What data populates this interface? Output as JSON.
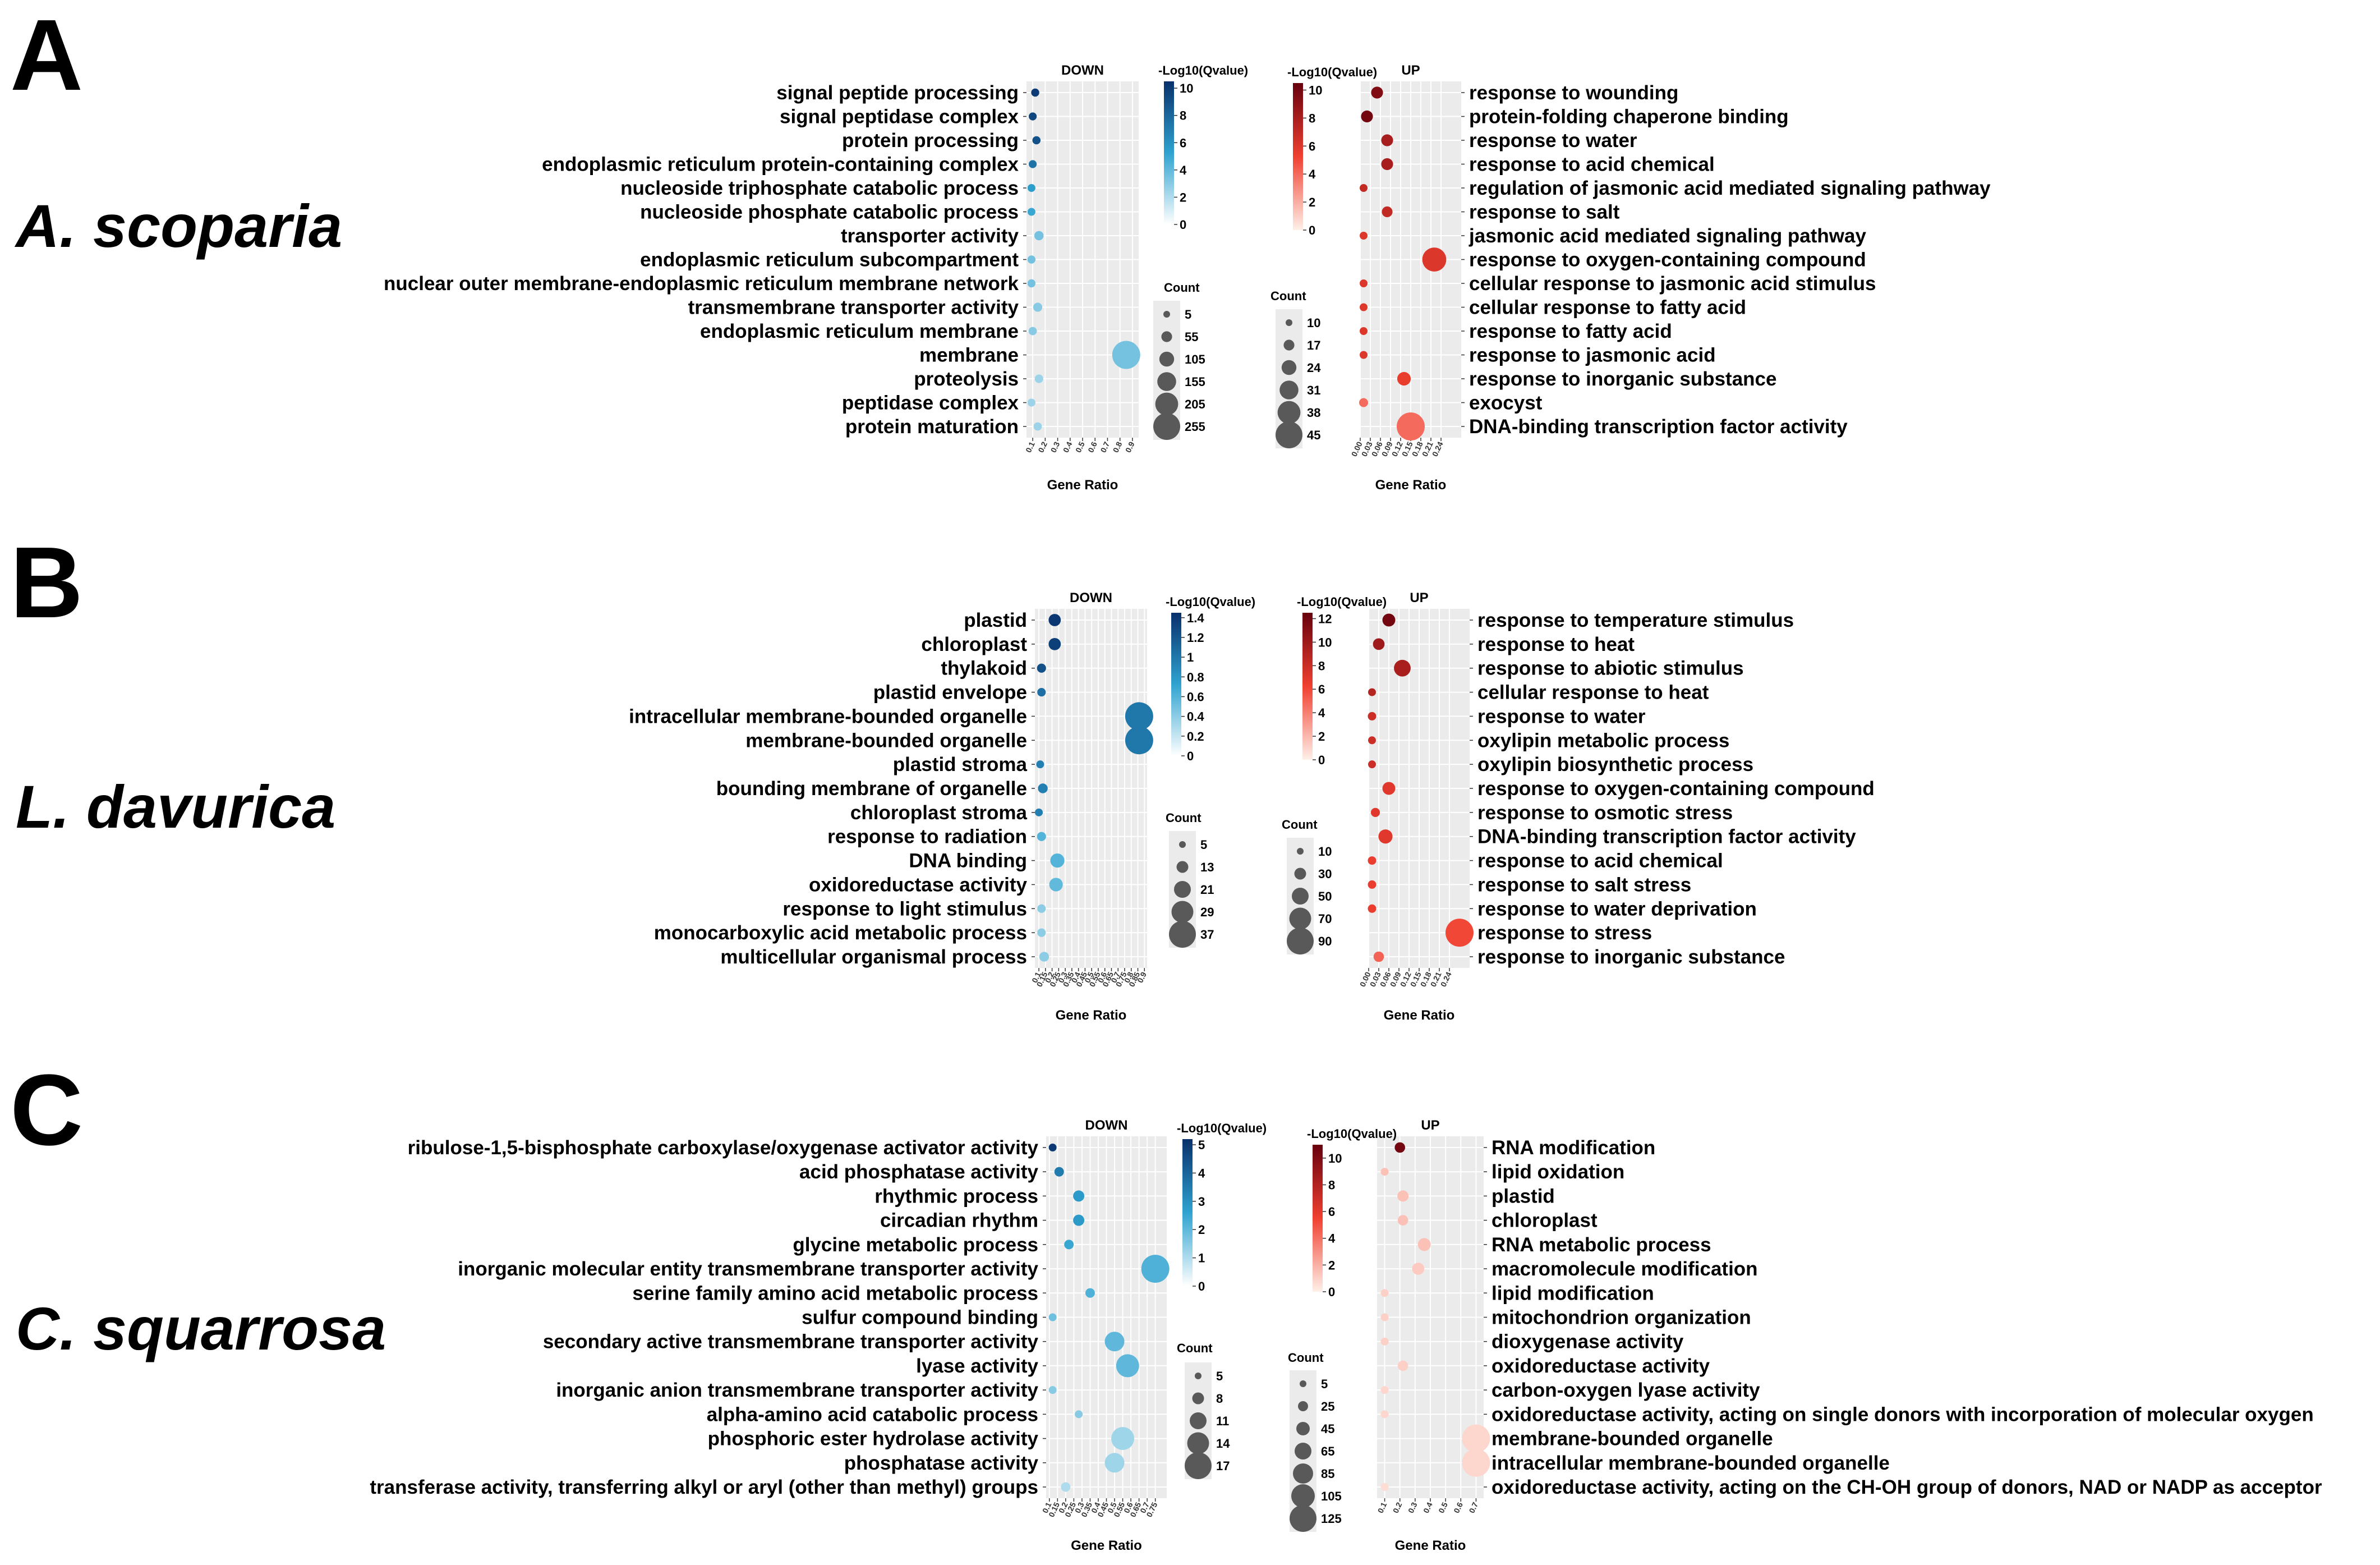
{
  "figure": {
    "panels": [
      {
        "letter": "A",
        "species": "A. scoparia"
      },
      {
        "letter": "B",
        "species": "L. davurica"
      },
      {
        "letter": "C",
        "species": "C. squarrosa"
      }
    ],
    "down_title": "DOWN",
    "up_title": "UP",
    "color_legend_title": "-Log10(Qvalue)",
    "size_legend_title": "Count",
    "x_label": "Gene Ratio",
    "down_color_low": "#ffffff",
    "down_color_mid": "#2fa3d0",
    "down_color_high": "#08306b",
    "up_color_low": "#fff0e8",
    "up_color_mid": "#f04030",
    "up_color_high": "#67000d",
    "panel_bg": "#ebebeb"
  },
  "chart_data": [
    {
      "type": "scatter",
      "panel": "A",
      "direction": "down",
      "title": "DOWN",
      "xlabel": "Gene Ratio",
      "xlim": [
        0.05,
        0.95
      ],
      "xticks": [
        "0.1",
        "0.2",
        "0.3",
        "0.4",
        "0.5",
        "0.6",
        "0.7",
        "0.8",
        "0.9"
      ],
      "color_legend": {
        "title": "-Log10(Qvalue)",
        "min": 0,
        "max": 10.5,
        "ticks": [
          "10",
          "8",
          "6",
          "4",
          "2",
          "0"
        ]
      },
      "size_legend": {
        "title": "Count",
        "values": [
          "5",
          "55",
          "105",
          "155",
          "205",
          "255"
        ]
      },
      "terms": [
        "signal peptide processing",
        "signal peptidase complex",
        "protein processing",
        "endoplasmic reticulum protein-containing complex",
        "nucleoside triphosphate catabolic process",
        "nucleoside phosphate catabolic process",
        "transporter activity",
        "endoplasmic reticulum subcompartment",
        "nuclear outer membrane-endoplasmic reticulum membrane network",
        "transmembrane transporter activity",
        "endoplasmic reticulum membrane",
        "membrane",
        "proteolysis",
        "peptidase complex",
        "protein maturation"
      ],
      "gene_ratio": [
        0.12,
        0.1,
        0.13,
        0.1,
        0.09,
        0.09,
        0.15,
        0.09,
        0.09,
        0.14,
        0.1,
        0.85,
        0.15,
        0.09,
        0.14
      ],
      "count": [
        10,
        9,
        11,
        9,
        7,
        7,
        25,
        10,
        10,
        22,
        12,
        255,
        15,
        8,
        12
      ],
      "neg_log10_q": [
        10,
        9.5,
        9,
        7.5,
        5.5,
        5,
        3.5,
        3.5,
        3.5,
        3,
        3,
        3.5,
        2.5,
        2.5,
        2.5
      ]
    },
    {
      "type": "scatter",
      "panel": "A",
      "direction": "up",
      "title": "UP",
      "xlabel": "Gene Ratio",
      "xlim": [
        0.0,
        0.3
      ],
      "xticks": [
        "0.00",
        "0.03",
        "0.06",
        "0.09",
        "0.12",
        "0.15",
        "0.18",
        "0.21",
        "0.24"
      ],
      "color_legend": {
        "title": "-Log10(Qvalue)",
        "min": 0,
        "max": 10.5,
        "ticks": [
          "10",
          "8",
          "6",
          "4",
          "2",
          "0"
        ]
      },
      "size_legend": {
        "title": "Count",
        "values": [
          "10",
          "17",
          "24",
          "31",
          "38",
          "45"
        ]
      },
      "terms": [
        "response to wounding",
        "protein-folding chaperone binding",
        "response to water",
        "response to acid chemical",
        "regulation of jasmonic acid mediated signaling pathway",
        "response to salt",
        "jasmonic acid mediated signaling pathway",
        "response to oxygen-containing compound",
        "cellular response to jasmonic acid stimulus",
        "cellular response to fatty acid",
        "response to fatty acid",
        "response to jasmonic acid",
        "response to inorganic substance",
        "exocyst",
        "DNA-binding transcription factor activity"
      ],
      "gene_ratio": [
        0.05,
        0.02,
        0.08,
        0.08,
        0.01,
        0.08,
        0.01,
        0.22,
        0.01,
        0.01,
        0.01,
        0.01,
        0.13,
        0.01,
        0.15
      ],
      "count": [
        17,
        17,
        17,
        17,
        10,
        15,
        10,
        38,
        10,
        10,
        10,
        10,
        20,
        12,
        45
      ],
      "neg_log10_q": [
        9.5,
        10,
        8,
        8,
        7,
        7,
        6,
        6,
        6,
        6,
        6,
        6,
        5.5,
        4,
        4
      ]
    },
    {
      "type": "scatter",
      "panel": "B",
      "direction": "down",
      "title": "DOWN",
      "xlabel": "Gene Ratio",
      "xlim": [
        0.07,
        0.92
      ],
      "xticks": [
        "0.1",
        "0.15",
        "0.2",
        "0.25",
        "0.3",
        "0.35",
        "0.4",
        "0.45",
        "0.5",
        "0.55",
        "0.6",
        "0.65",
        "0.7",
        "0.75",
        "0.8",
        "0.85",
        "0.9"
      ],
      "color_legend": {
        "title": "-Log10(Qvalue)",
        "min": 0,
        "max": 1.45,
        "ticks": [
          "1.4",
          "1.2",
          "1",
          "0.8",
          "0.6",
          "0.4",
          "0.2",
          "0"
        ]
      },
      "size_legend": {
        "title": "Count",
        "values": [
          "5",
          "13",
          "21",
          "29",
          "37"
        ]
      },
      "terms": [
        "plastid",
        "chloroplast",
        "thylakoid",
        "plastid envelope",
        "intracellular membrane-bounded organelle",
        "membrane-bounded organelle",
        "plastid stroma",
        "bounding membrane of organelle",
        "chloroplast stroma",
        "response to radiation",
        "DNA binding",
        "oxidoreductase activity",
        "response to light stimulus",
        "monocarboxylic acid metabolic process",
        "multicellular organismal process"
      ],
      "gene_ratio": [
        0.22,
        0.22,
        0.12,
        0.12,
        0.86,
        0.86,
        0.11,
        0.13,
        0.1,
        0.12,
        0.24,
        0.23,
        0.12,
        0.12,
        0.14
      ],
      "count": [
        12,
        12,
        7,
        6,
        37,
        37,
        5,
        8,
        5,
        7,
        15,
        14,
        6,
        6,
        8
      ],
      "neg_log10_q": [
        1.4,
        1.35,
        1.25,
        1.05,
        1.0,
        1.0,
        0.95,
        0.95,
        0.95,
        0.6,
        0.6,
        0.55,
        0.4,
        0.4,
        0.4
      ]
    },
    {
      "type": "scatter",
      "panel": "B",
      "direction": "up",
      "title": "UP",
      "xlabel": "Gene Ratio",
      "xlim": [
        0.0,
        0.3
      ],
      "xticks": [
        "0.00",
        "0.03",
        "0.06",
        "0.09",
        "0.12",
        "0.15",
        "0.18",
        "0.21",
        "0.24"
      ],
      "color_legend": {
        "title": "-Log10(Qvalue)",
        "min": 0,
        "max": 12.5,
        "ticks": [
          "12",
          "10",
          "8",
          "6",
          "4",
          "2",
          "0"
        ]
      },
      "size_legend": {
        "title": "Count",
        "values": [
          "10",
          "30",
          "50",
          "70",
          "90"
        ]
      },
      "terms": [
        "response to temperature stimulus",
        "response to heat",
        "response to abiotic stimulus",
        "cellular response to heat",
        "response to water",
        "oxylipin metabolic process",
        "oxylipin biosynthetic process",
        "response to oxygen-containing compound",
        "response to osmotic stress",
        "DNA-binding transcription factor activity",
        "response to acid chemical",
        "response to salt stress",
        "response to water deprivation",
        "response to stress",
        "response to inorganic substance"
      ],
      "gene_ratio": [
        0.06,
        0.03,
        0.1,
        0.01,
        0.01,
        0.01,
        0.01,
        0.06,
        0.02,
        0.05,
        0.01,
        0.01,
        0.01,
        0.27,
        0.03
      ],
      "count": [
        30,
        25,
        45,
        10,
        12,
        10,
        10,
        30,
        15,
        35,
        12,
        12,
        12,
        90,
        20
      ],
      "neg_log10_q": [
        12,
        10,
        9.5,
        9,
        8,
        8,
        8,
        7,
        7,
        7,
        6.5,
        6.5,
        6.5,
        6,
        5
      ]
    },
    {
      "type": "scatter",
      "panel": "C",
      "direction": "down",
      "title": "DOWN",
      "xlabel": "Gene Ratio",
      "xlim": [
        0.08,
        0.82
      ],
      "xticks": [
        "0.1",
        "0.15",
        "0.2",
        "0.25",
        "0.3",
        "0.35",
        "0.4",
        "0.45",
        "0.5",
        "0.55",
        "0.6",
        "0.65",
        "0.7",
        "0.75"
      ],
      "color_legend": {
        "title": "-Log10(Qvalue)",
        "min": 0,
        "max": 5.2,
        "ticks": [
          "5",
          "4",
          "3",
          "2",
          "1",
          "0"
        ]
      },
      "size_legend": {
        "title": "Count",
        "values": [
          "5",
          "8",
          "11",
          "14",
          "17"
        ]
      },
      "terms": [
        "ribulose-1,5-bisphosphate carboxylase/oxygenase activator activity",
        "acid phosphatase activity",
        "rhythmic process",
        "circadian rhythm",
        "glycine metabolic process",
        "inorganic molecular entity transmembrane transporter activity",
        "serine family amino acid metabolic process",
        "sulfur compound binding",
        "secondary active transmembrane transporter activity",
        "lyase activity",
        "inorganic anion transmembrane transporter activity",
        "alpha-amino acid catabolic process",
        "phosphoric ester hydrolase activity",
        "phosphatase activity",
        "transferase activity, transferring alkyl or aryl (other than methyl) groups"
      ],
      "gene_ratio": [
        0.12,
        0.16,
        0.28,
        0.28,
        0.22,
        0.75,
        0.35,
        0.12,
        0.5,
        0.58,
        0.12,
        0.28,
        0.55,
        0.5,
        0.2
      ],
      "count": [
        5,
        6,
        7,
        7,
        6,
        17,
        6,
        5,
        12,
        14,
        5,
        5,
        14,
        12,
        6
      ],
      "neg_log10_q": [
        5,
        3.5,
        2.8,
        2.8,
        2.5,
        2.2,
        2.2,
        1.8,
        2.0,
        2.0,
        1.5,
        1.5,
        1.2,
        1.2,
        1.0
      ]
    },
    {
      "type": "scatter",
      "panel": "C",
      "direction": "up",
      "title": "UP",
      "xlabel": "Gene Ratio",
      "xlim": [
        0.05,
        0.75
      ],
      "xticks": [
        "0.1",
        "0.2",
        "0.3",
        "0.4",
        "0.5",
        "0.6",
        "0.7"
      ],
      "color_legend": {
        "title": "-Log10(Qvalue)",
        "min": 0,
        "max": 11,
        "ticks": [
          "10",
          "8",
          "6",
          "4",
          "2",
          "0"
        ]
      },
      "size_legend": {
        "title": "Count",
        "values": [
          "5",
          "25",
          "45",
          "65",
          "85",
          "105",
          "125"
        ]
      },
      "terms": [
        "RNA modification",
        "lipid oxidation",
        "plastid",
        "chloroplast",
        "RNA metabolic process",
        "macromolecule modification",
        "lipid modification",
        "mitochondrion organization",
        "dioxygenase activity",
        "oxidoreductase activity",
        "carbon-oxygen lyase activity",
        "oxidoreductase activity, acting on single donors with incorporation of molecular oxygen",
        "membrane-bounded organelle",
        "intracellular membrane-bounded organelle",
        "oxidoreductase activity, acting on the CH-OH group of donors, NAD or NADP as acceptor"
      ],
      "gene_ratio": [
        0.2,
        0.1,
        0.22,
        0.22,
        0.36,
        0.32,
        0.1,
        0.1,
        0.1,
        0.22,
        0.1,
        0.1,
        0.7,
        0.7,
        0.1
      ],
      "count": [
        20,
        5,
        25,
        20,
        35,
        30,
        5,
        5,
        5,
        20,
        5,
        5,
        125,
        125,
        5
      ],
      "neg_log10_q": [
        10.5,
        1.5,
        1.5,
        1.5,
        1.5,
        1.2,
        1.0,
        1.0,
        1.0,
        1.0,
        0.8,
        0.8,
        0.8,
        0.8,
        0.6
      ]
    }
  ]
}
